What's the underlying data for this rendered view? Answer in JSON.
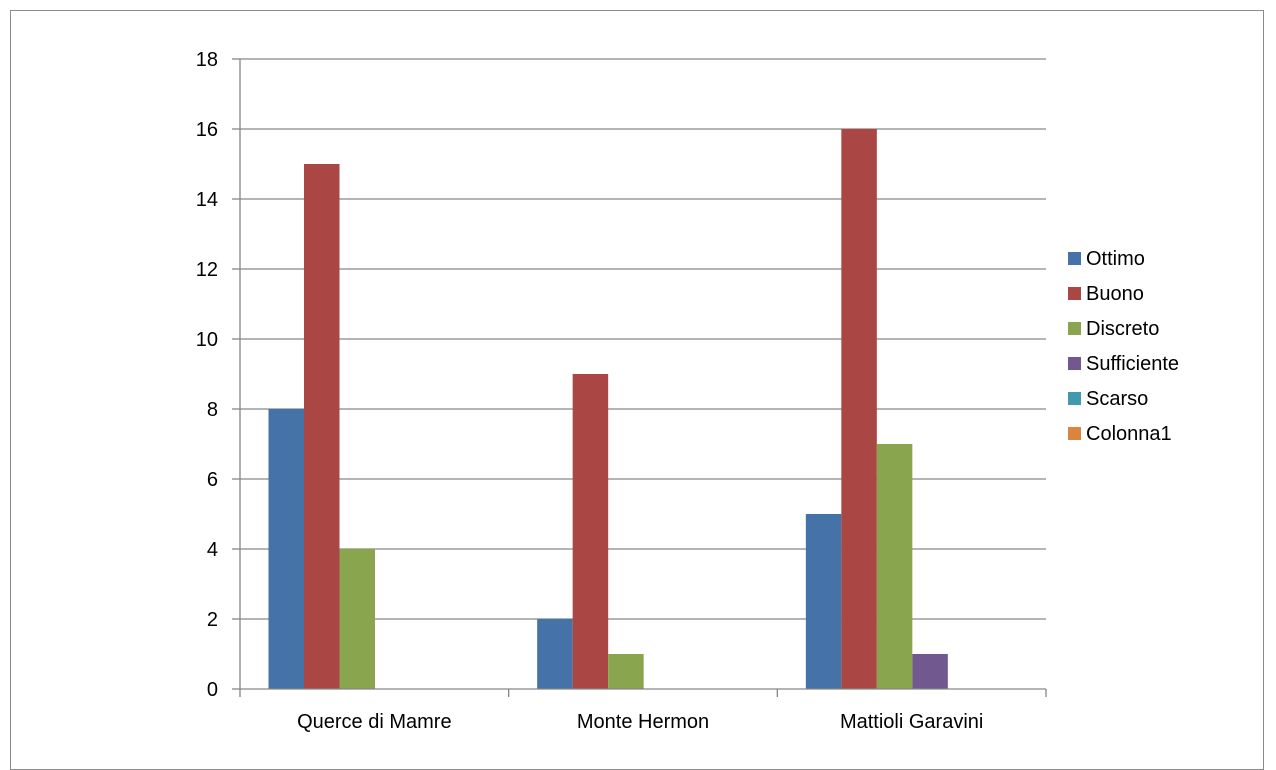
{
  "chart_data": {
    "type": "bar",
    "title": "",
    "xlabel": "",
    "ylabel": "",
    "categories": [
      "Querce di Mamre",
      "Monte Hermon",
      "Mattioli Garavini"
    ],
    "series": [
      {
        "name": "Ottimo",
        "color": "#4572A7",
        "values": [
          8,
          2,
          5
        ]
      },
      {
        "name": "Buono",
        "color": "#AA4643",
        "values": [
          15,
          9,
          16
        ]
      },
      {
        "name": "Discreto",
        "color": "#89A54E",
        "values": [
          4,
          1,
          7
        ]
      },
      {
        "name": "Sufficiente",
        "color": "#71588F",
        "values": [
          0,
          0,
          1
        ]
      },
      {
        "name": "Scarso",
        "color": "#4198AF",
        "values": [
          0,
          0,
          0
        ]
      },
      {
        "name": "Colonna1",
        "color": "#DB843D",
        "values": [
          0,
          0,
          0
        ]
      }
    ],
    "ylim": [
      0,
      18
    ],
    "yticks": [
      0,
      2,
      4,
      6,
      8,
      10,
      12,
      14,
      16,
      18
    ],
    "grid": true,
    "legend_position": "right"
  }
}
